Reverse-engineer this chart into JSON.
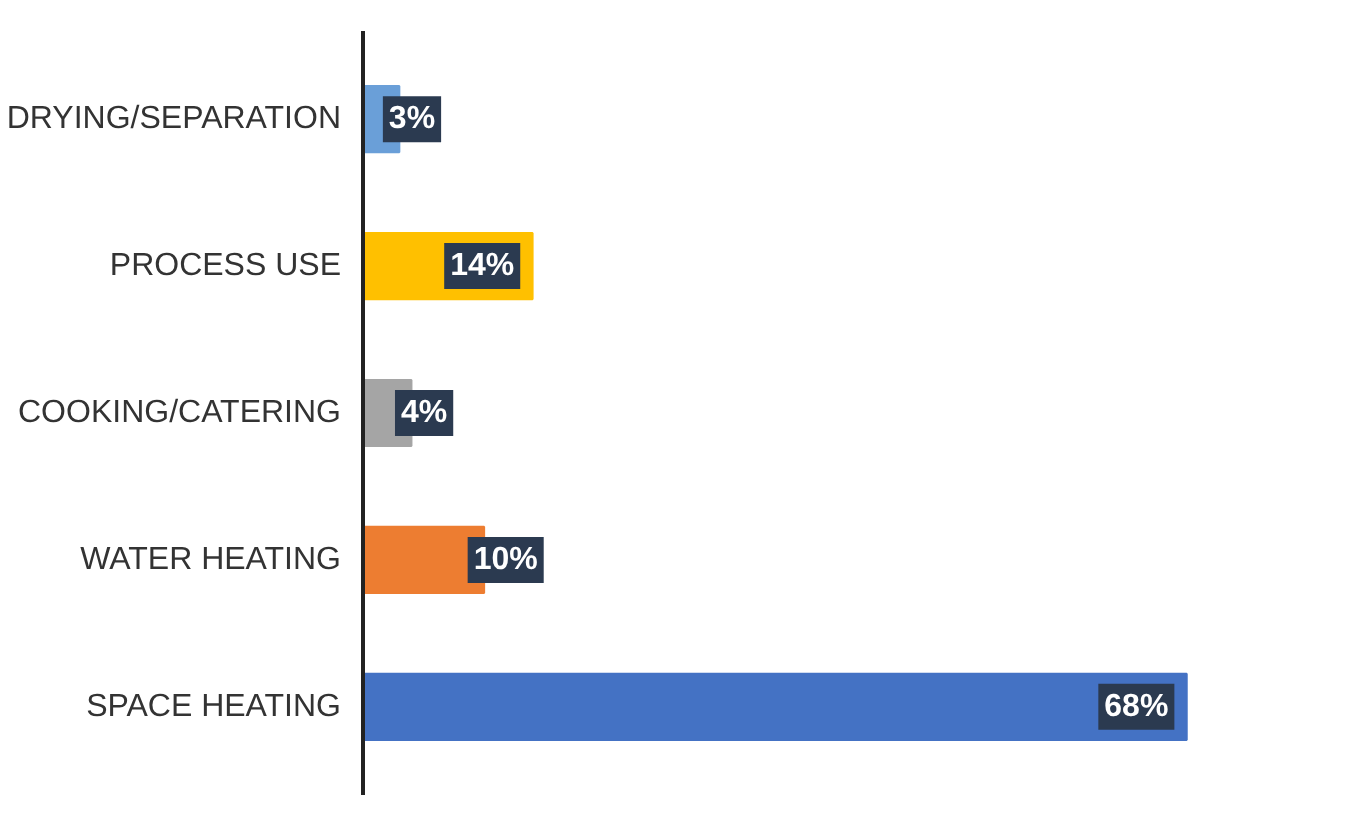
{
  "chart_data": {
    "type": "bar",
    "orientation": "horizontal",
    "categories": [
      "DRYING/SEPARATION",
      "PROCESS USE",
      "COOKING/CATERING",
      "WATER HEATING",
      "SPACE HEATING"
    ],
    "values": [
      3,
      14,
      4,
      10,
      68
    ],
    "colors": [
      "#6a9fd8",
      "#ffc000",
      "#a5a5a5",
      "#ed7d31",
      "#4472c4"
    ],
    "data_labels": true,
    "value_labels": [
      "3%",
      "14%",
      "4%",
      "10%",
      "68%"
    ]
  }
}
